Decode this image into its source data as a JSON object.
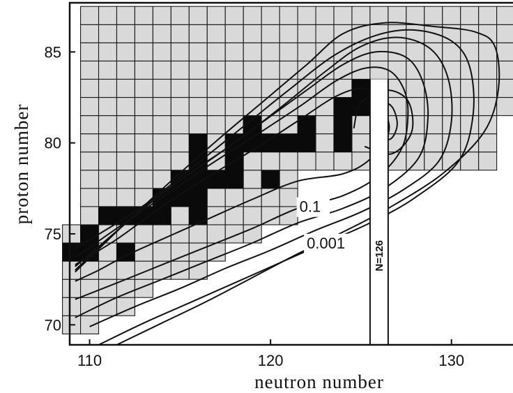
{
  "chart_data": {
    "type": "heatmap",
    "title": "",
    "xlabel": "neutron number",
    "ylabel": "proton number",
    "xlim": [
      108.9,
      133.4
    ],
    "ylim": [
      68.9,
      87.7
    ],
    "x_ticks": [
      {
        "value": 110,
        "label": "110"
      },
      {
        "value": 120,
        "label": "120"
      },
      {
        "value": 130,
        "label": "130"
      }
    ],
    "y_ticks": [
      {
        "value": 70,
        "label": "70"
      },
      {
        "value": 75,
        "label": "75"
      },
      {
        "value": 80,
        "label": "80"
      },
      {
        "value": 85,
        "label": "85"
      }
    ],
    "grid_cells_description": "chart of nuclides; each square is one nucleus (N, Z)",
    "chart_rows": [
      {
        "z": 70,
        "n_min": 109,
        "n_max": 110
      },
      {
        "z": 71,
        "n_min": 109,
        "n_max": 112
      },
      {
        "z": 72,
        "n_min": 109,
        "n_max": 113
      },
      {
        "z": 73,
        "n_min": 109,
        "n_max": 116
      },
      {
        "z": 74,
        "n_min": 109,
        "n_max": 117
      },
      {
        "z": 75,
        "n_min": 109,
        "n_max": 119
      },
      {
        "z": 76,
        "n_min": 110,
        "n_max": 121
      },
      {
        "z": 77,
        "n_min": 110,
        "n_max": 121
      },
      {
        "z": 78,
        "n_min": 110,
        "n_max": 121
      },
      {
        "z": 79,
        "n_min": 110,
        "n_max": 132
      },
      {
        "z": 80,
        "n_min": 110,
        "n_max": 132
      },
      {
        "z": 81,
        "n_min": 110,
        "n_max": 132
      },
      {
        "z": 82,
        "n_min": 110,
        "n_max": 133
      },
      {
        "z": 83,
        "n_min": 110,
        "n_max": 133
      },
      {
        "z": 84,
        "n_min": 110,
        "n_max": 133
      },
      {
        "z": 85,
        "n_min": 110,
        "n_max": 133
      },
      {
        "z": 86,
        "n_min": 110,
        "n_max": 133
      },
      {
        "z": 87,
        "n_min": 110,
        "n_max": 133
      }
    ],
    "stable_nuclei": [
      {
        "n": 109,
        "z": 74
      },
      {
        "n": 110,
        "z": 74
      },
      {
        "n": 110,
        "z": 75
      },
      {
        "n": 112,
        "z": 74
      },
      {
        "n": 111,
        "z": 76
      },
      {
        "n": 112,
        "z": 76
      },
      {
        "n": 113,
        "z": 76
      },
      {
        "n": 114,
        "z": 76
      },
      {
        "n": 114,
        "z": 77
      },
      {
        "n": 115,
        "z": 77
      },
      {
        "n": 115,
        "z": 78
      },
      {
        "n": 116,
        "z": 76
      },
      {
        "n": 116,
        "z": 77
      },
      {
        "n": 116,
        "z": 78
      },
      {
        "n": 116,
        "z": 79
      },
      {
        "n": 117,
        "z": 78
      },
      {
        "n": 118,
        "z": 78
      },
      {
        "n": 118,
        "z": 79
      },
      {
        "n": 118,
        "z": 80
      },
      {
        "n": 119,
        "z": 80
      },
      {
        "n": 119,
        "z": 81
      },
      {
        "n": 120,
        "z": 78
      },
      {
        "n": 120,
        "z": 80
      },
      {
        "n": 121,
        "z": 80
      },
      {
        "n": 122,
        "z": 80
      },
      {
        "n": 122,
        "z": 81
      },
      {
        "n": 124,
        "z": 80
      },
      {
        "n": 124,
        "z": 81
      },
      {
        "n": 124,
        "z": 82
      },
      {
        "n": 125,
        "z": 82
      },
      {
        "n": 125,
        "z": 83
      },
      {
        "n": 126,
        "z": 82
      },
      {
        "n": 116,
        "z": 80
      }
    ],
    "contours": [
      {
        "label": "0.1",
        "points": [
          [
            109.2,
            72.4
          ],
          [
            110.5,
            73.0
          ],
          [
            112.0,
            73.8
          ],
          [
            114.0,
            74.7
          ],
          [
            116.5,
            75.8
          ],
          [
            119.0,
            76.9
          ],
          [
            121.5,
            77.9
          ],
          [
            124.0,
            78.3
          ],
          [
            125.5,
            79.1
          ],
          [
            126.5,
            80.5
          ],
          [
            126.4,
            81.6
          ],
          [
            126.0,
            82.6
          ],
          [
            125.0,
            83.0
          ],
          [
            123.5,
            82.5
          ],
          [
            121.5,
            81.2
          ],
          [
            119.0,
            79.6
          ],
          [
            116.5,
            78.1
          ],
          [
            114.0,
            76.5
          ],
          [
            111.5,
            74.7
          ],
          [
            109.2,
            73.3
          ]
        ]
      },
      {
        "label": "0.001",
        "points": [
          [
            111.5,
            68.9
          ],
          [
            114.0,
            70.1
          ],
          [
            116.5,
            71.3
          ],
          [
            119.0,
            72.6
          ],
          [
            121.5,
            73.9
          ],
          [
            124.0,
            75.1
          ],
          [
            126.5,
            76.4
          ],
          [
            129.5,
            78.3
          ],
          [
            131.8,
            80.6
          ],
          [
            132.6,
            83.0
          ],
          [
            132.4,
            85.3
          ],
          [
            131.3,
            86.1
          ],
          [
            129.0,
            86.4
          ],
          [
            126.3,
            86.6
          ],
          [
            124.0,
            86.0
          ],
          [
            122.0,
            84.3
          ],
          [
            119.5,
            82.2
          ],
          [
            117.0,
            80.1
          ],
          [
            114.5,
            77.9
          ],
          [
            112.0,
            75.6
          ],
          [
            109.2,
            72.9
          ]
        ]
      },
      {
        "label": "",
        "points": [
          [
            109.2,
            71.4
          ],
          [
            111.5,
            72.3
          ],
          [
            114.0,
            73.3
          ],
          [
            116.5,
            74.3
          ],
          [
            119.0,
            75.3
          ],
          [
            121.5,
            76.4
          ],
          [
            124.0,
            77.1
          ],
          [
            126.0,
            78.2
          ],
          [
            127.3,
            79.8
          ],
          [
            127.6,
            81.8
          ],
          [
            127.3,
            83.1
          ],
          [
            126.5,
            84.0
          ],
          [
            125.2,
            84.1
          ],
          [
            123.6,
            83.4
          ],
          [
            121.6,
            82.0
          ],
          [
            119.0,
            80.3
          ],
          [
            116.5,
            78.7
          ],
          [
            114.0,
            77.0
          ],
          [
            111.5,
            75.3
          ],
          [
            109.2,
            73.7
          ]
        ]
      },
      {
        "label": "",
        "points": [
          [
            109.2,
            70.4
          ],
          [
            111.5,
            71.5
          ],
          [
            114.0,
            72.5
          ],
          [
            116.5,
            73.5
          ],
          [
            119.0,
            74.5
          ],
          [
            121.5,
            75.6
          ],
          [
            124.0,
            76.4
          ],
          [
            126.3,
            77.5
          ],
          [
            128.2,
            79.2
          ],
          [
            128.7,
            81.4
          ],
          [
            128.4,
            83.4
          ],
          [
            127.5,
            84.7
          ],
          [
            125.8,
            85.0
          ],
          [
            124.0,
            84.3
          ],
          [
            122.0,
            82.9
          ],
          [
            119.5,
            81.1
          ],
          [
            117.0,
            79.3
          ],
          [
            114.5,
            77.6
          ],
          [
            112.0,
            75.9
          ],
          [
            109.2,
            74.2
          ]
        ]
      },
      {
        "label": "",
        "points": [
          [
            110.0,
            69.9
          ],
          [
            112.5,
            71.0
          ],
          [
            115.0,
            72.0
          ],
          [
            117.5,
            73.1
          ],
          [
            120.0,
            74.1
          ],
          [
            122.5,
            75.2
          ],
          [
            125.0,
            76.2
          ],
          [
            127.3,
            77.4
          ],
          [
            129.3,
            79.0
          ],
          [
            130.0,
            81.2
          ],
          [
            129.8,
            83.6
          ],
          [
            128.8,
            85.2
          ],
          [
            127.0,
            85.8
          ],
          [
            125.0,
            85.3
          ],
          [
            123.0,
            83.9
          ],
          [
            120.5,
            81.9
          ],
          [
            118.0,
            80.0
          ],
          [
            115.5,
            78.3
          ],
          [
            113.0,
            76.4
          ],
          [
            110.5,
            74.3
          ],
          [
            109.2,
            73.2
          ]
        ]
      },
      {
        "label": "",
        "points": [
          [
            110.5,
            68.9
          ],
          [
            113.0,
            70.1
          ],
          [
            115.5,
            71.2
          ],
          [
            118.0,
            72.3
          ],
          [
            120.5,
            73.4
          ],
          [
            123.0,
            74.5
          ],
          [
            125.5,
            75.6
          ],
          [
            128.0,
            77.0
          ],
          [
            130.4,
            79.0
          ],
          [
            131.2,
            81.6
          ],
          [
            131.0,
            84.2
          ],
          [
            130.0,
            85.6
          ],
          [
            128.0,
            86.2
          ],
          [
            125.8,
            85.9
          ],
          [
            123.5,
            84.8
          ],
          [
            121.0,
            82.9
          ],
          [
            118.5,
            80.9
          ],
          [
            116.0,
            78.9
          ],
          [
            113.5,
            76.9
          ],
          [
            111.0,
            74.7
          ],
          [
            109.2,
            73.0
          ]
        ]
      }
    ],
    "inner_contours": [
      {
        "label": "",
        "points": [
          [
            125.8,
            80.5
          ],
          [
            126.6,
            80.2
          ],
          [
            127.0,
            81.0
          ],
          [
            126.7,
            82.0
          ],
          [
            126.0,
            82.2
          ],
          [
            125.5,
            81.3
          ]
        ]
      },
      {
        "label": "",
        "points": [
          [
            125.2,
            79.8
          ],
          [
            126.7,
            79.4
          ],
          [
            127.8,
            80.6
          ],
          [
            127.6,
            82.3
          ],
          [
            126.4,
            82.9
          ],
          [
            125.0,
            82.2
          ],
          [
            124.6,
            80.8
          ]
        ]
      }
    ],
    "reference_line": {
      "label": "N=126",
      "n_left": 125.5,
      "n_right": 126.5,
      "z_top": 83.5
    }
  }
}
